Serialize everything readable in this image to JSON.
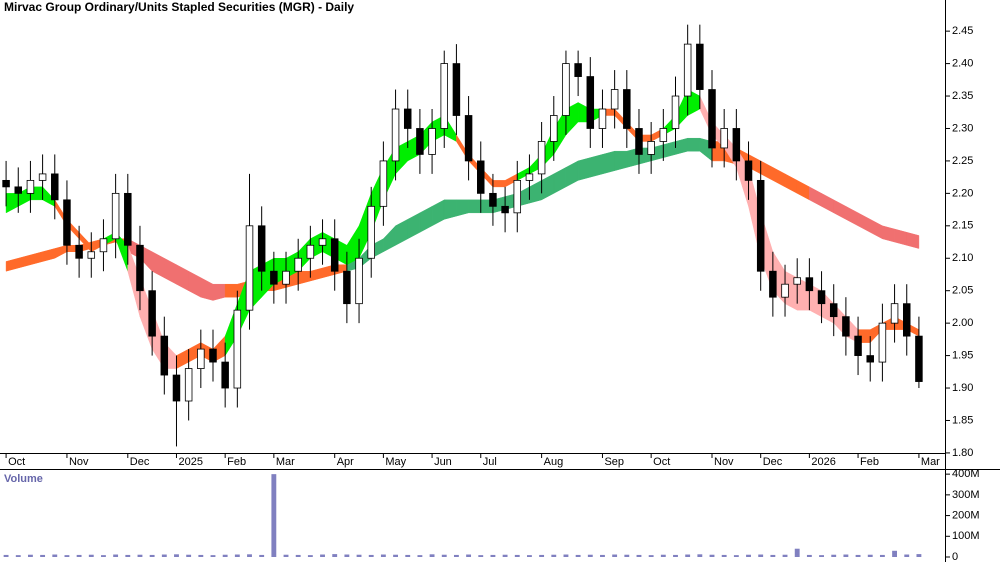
{
  "chart_data": [
    {
      "type": "candlestick",
      "title": "Mirvac Group Ordinary/Units Stapled Securities (MGR) - Daily",
      "categories": [
        "Oct",
        null,
        null,
        null,
        null,
        "Nov",
        null,
        null,
        null,
        null,
        "Dec",
        null,
        null,
        null,
        "2025",
        null,
        null,
        null,
        "Feb",
        null,
        null,
        null,
        "Mar",
        null,
        null,
        null,
        null,
        "Apr",
        null,
        null,
        null,
        "May",
        null,
        null,
        null,
        "Jun",
        null,
        null,
        null,
        "Jul",
        null,
        null,
        null,
        null,
        "Aug",
        null,
        null,
        null,
        null,
        "Sep",
        null,
        null,
        null,
        "Oct",
        null,
        null,
        null,
        null,
        "Nov",
        null,
        null,
        null,
        "Dec",
        null,
        null,
        null,
        "2026",
        null,
        null,
        null,
        "Feb",
        null,
        null,
        null,
        null,
        "Mar"
      ],
      "open": [
        2.22,
        2.21,
        2.2,
        2.22,
        2.23,
        2.19,
        2.12,
        2.1,
        2.11,
        2.13,
        2.2,
        2.12,
        2.05,
        1.98,
        1.92,
        1.88,
        1.93,
        1.96,
        1.94,
        1.9,
        2.02,
        2.15,
        2.08,
        2.06,
        2.08,
        2.1,
        2.12,
        2.13,
        2.08,
        2.03,
        2.1,
        2.18,
        2.25,
        2.33,
        2.3,
        2.26,
        2.3,
        2.4,
        2.32,
        2.25,
        2.2,
        2.18,
        2.17,
        2.22,
        2.23,
        2.28,
        2.32,
        2.4,
        2.38,
        2.3,
        2.33,
        2.36,
        2.3,
        2.26,
        2.28,
        2.3,
        2.35,
        2.43,
        2.36,
        2.27,
        2.3,
        2.25,
        2.22,
        2.08,
        2.04,
        2.06,
        2.07,
        2.05,
        2.03,
        2.01,
        1.98,
        1.95,
        1.94,
        2.0,
        2.03,
        1.98
      ],
      "high": [
        2.25,
        2.24,
        2.25,
        2.26,
        2.26,
        2.22,
        2.15,
        2.14,
        2.16,
        2.23,
        2.23,
        2.15,
        2.08,
        2.01,
        1.95,
        1.96,
        1.99,
        1.99,
        1.97,
        2.05,
        2.23,
        2.18,
        2.11,
        2.11,
        2.13,
        2.15,
        2.16,
        2.16,
        2.11,
        2.13,
        2.21,
        2.28,
        2.36,
        2.36,
        2.33,
        2.33,
        2.42,
        2.43,
        2.35,
        2.28,
        2.23,
        2.21,
        2.25,
        2.26,
        2.31,
        2.35,
        2.42,
        2.42,
        2.41,
        2.36,
        2.39,
        2.39,
        2.33,
        2.31,
        2.33,
        2.38,
        2.46,
        2.46,
        2.39,
        2.33,
        2.33,
        2.28,
        2.25,
        2.11,
        2.09,
        2.1,
        2.1,
        2.08,
        2.06,
        2.04,
        2.01,
        1.98,
        2.03,
        2.06,
        2.06,
        2.01
      ],
      "low": [
        2.18,
        2.17,
        2.17,
        2.19,
        2.16,
        2.09,
        2.07,
        2.07,
        2.08,
        2.1,
        2.09,
        2.02,
        1.95,
        1.89,
        1.81,
        1.85,
        1.9,
        1.91,
        1.87,
        1.87,
        1.99,
        2.05,
        2.03,
        2.03,
        2.05,
        2.07,
        2.09,
        2.05,
        2.0,
        2.0,
        2.07,
        2.15,
        2.22,
        2.27,
        2.23,
        2.23,
        2.27,
        2.29,
        2.22,
        2.17,
        2.15,
        2.14,
        2.14,
        2.19,
        2.2,
        2.25,
        2.29,
        2.35,
        2.27,
        2.27,
        2.3,
        2.27,
        2.23,
        2.23,
        2.25,
        2.27,
        2.32,
        2.33,
        2.24,
        2.24,
        2.22,
        2.19,
        2.05,
        2.01,
        2.01,
        2.03,
        2.02,
        2.0,
        1.98,
        1.95,
        1.92,
        1.91,
        1.91,
        1.97,
        1.95,
        1.9
      ],
      "close": [
        2.21,
        2.2,
        2.22,
        2.23,
        2.19,
        2.12,
        2.1,
        2.11,
        2.13,
        2.2,
        2.12,
        2.05,
        1.98,
        1.92,
        1.88,
        1.93,
        1.96,
        1.94,
        1.9,
        2.02,
        2.15,
        2.08,
        2.06,
        2.08,
        2.1,
        2.12,
        2.13,
        2.08,
        2.03,
        2.1,
        2.18,
        2.25,
        2.33,
        2.3,
        2.26,
        2.3,
        2.4,
        2.32,
        2.25,
        2.2,
        2.18,
        2.17,
        2.22,
        2.23,
        2.28,
        2.32,
        2.4,
        2.38,
        2.3,
        2.33,
        2.36,
        2.3,
        2.26,
        2.28,
        2.3,
        2.35,
        2.43,
        2.36,
        2.27,
        2.3,
        2.25,
        2.22,
        2.08,
        2.04,
        2.06,
        2.07,
        2.05,
        2.03,
        2.01,
        1.98,
        1.95,
        1.94,
        2.0,
        2.03,
        1.98,
        1.91
      ],
      "bands": [
        {
          "upper": [
            2.095,
            2.1,
            2.105,
            2.11,
            2.115,
            2.12,
            2.12,
            2.125,
            2.13,
            2.13,
            2.13,
            2.12,
            2.11,
            2.1,
            2.09,
            2.08,
            2.07,
            2.06,
            2.06,
            2.06,
            2.065,
            2.07,
            2.07,
            2.075,
            2.08,
            2.08,
            2.085,
            2.09,
            2.09,
            2.1,
            2.12,
            2.13,
            2.15,
            2.16,
            2.17,
            2.18,
            2.19,
            2.19,
            2.19,
            2.19,
            2.19,
            2.195,
            2.2,
            2.21,
            2.22,
            2.23,
            2.24,
            2.25,
            2.255,
            2.26,
            2.265,
            2.265,
            2.27,
            2.27,
            2.275,
            2.28,
            2.285,
            2.285,
            2.28,
            2.28,
            2.27,
            2.26,
            2.25,
            2.24,
            2.23,
            2.22,
            2.21,
            2.2,
            2.19,
            2.18,
            2.17,
            2.16,
            2.15,
            2.145,
            2.14,
            2.135
          ],
          "lower": [
            2.08,
            2.085,
            2.09,
            2.095,
            2.1,
            2.11,
            2.11,
            2.115,
            2.12,
            2.125,
            2.11,
            2.1,
            2.08,
            2.07,
            2.06,
            2.05,
            2.04,
            2.035,
            2.04,
            2.04,
            2.045,
            2.05,
            2.05,
            2.055,
            2.06,
            2.065,
            2.07,
            2.075,
            2.08,
            2.085,
            2.1,
            2.11,
            2.12,
            2.13,
            2.14,
            2.15,
            2.16,
            2.165,
            2.17,
            2.17,
            2.17,
            2.175,
            2.18,
            2.185,
            2.19,
            2.2,
            2.21,
            2.22,
            2.225,
            2.23,
            2.235,
            2.24,
            2.245,
            2.25,
            2.255,
            2.26,
            2.265,
            2.265,
            2.25,
            2.25,
            2.245,
            2.24,
            2.23,
            2.22,
            2.21,
            2.2,
            2.19,
            2.18,
            2.17,
            2.16,
            2.15,
            2.14,
            2.13,
            2.125,
            2.12,
            2.115
          ],
          "colors": [
            "#ff6a2a",
            "#ff6a2a",
            "#ff6a2a",
            "#ff6a2a",
            "#ff6a2a",
            "#ff6a2a",
            "#ff6a2a",
            "#ff6a2a",
            "#ff6a2a",
            "#ff6a2a",
            "#f07070",
            "#f07070",
            "#f07070",
            "#f07070",
            "#f07070",
            "#f07070",
            "#f07070",
            "#f07070",
            "#ff6a2a",
            "#ff6a2a",
            "#ff6a2a",
            "#ff6a2a",
            "#ff6a2a",
            "#ff6a2a",
            "#ff6a2a",
            "#ff6a2a",
            "#ff6a2a",
            "#ff6a2a",
            "#3cb371",
            "#3cb371",
            "#3cb371",
            "#3cb371",
            "#3cb371",
            "#3cb371",
            "#3cb371",
            "#3cb371",
            "#3cb371",
            "#3cb371",
            "#3cb371",
            "#3cb371",
            "#3cb371",
            "#3cb371",
            "#3cb371",
            "#3cb371",
            "#3cb371",
            "#3cb371",
            "#3cb371",
            "#3cb371",
            "#3cb371",
            "#3cb371",
            "#3cb371",
            "#3cb371",
            "#3cb371",
            "#3cb371",
            "#3cb371",
            "#3cb371",
            "#3cb371",
            "#3cb371",
            "#ff6a2a",
            "#ff6a2a",
            "#ff6a2a",
            "#ff6a2a",
            "#ff6a2a",
            "#ff6a2a",
            "#ff6a2a",
            "#ff6a2a",
            "#f07070",
            "#f07070",
            "#f07070",
            "#f07070",
            "#f07070",
            "#f07070",
            "#f07070",
            "#f07070",
            "#f07070",
            "#f07070"
          ]
        },
        {
          "upper": [
            2.2,
            2.2,
            2.21,
            2.21,
            2.19,
            2.16,
            2.14,
            2.12,
            2.13,
            2.14,
            2.12,
            2.07,
            2.02,
            1.97,
            1.95,
            1.96,
            1.97,
            1.96,
            1.98,
            2.03,
            2.08,
            2.09,
            2.1,
            2.1,
            2.11,
            2.13,
            2.14,
            2.13,
            2.12,
            2.15,
            2.2,
            2.24,
            2.27,
            2.28,
            2.29,
            2.31,
            2.32,
            2.29,
            2.26,
            2.24,
            2.22,
            2.22,
            2.23,
            2.24,
            2.26,
            2.3,
            2.33,
            2.34,
            2.33,
            2.33,
            2.33,
            2.31,
            2.29,
            2.29,
            2.3,
            2.32,
            2.36,
            2.35,
            2.31,
            2.29,
            2.27,
            2.24,
            2.17,
            2.11,
            2.08,
            2.07,
            2.06,
            2.05,
            2.03,
            2.01,
            1.99,
            1.99,
            2.0,
            2.01,
            2.0,
            1.99
          ],
          "lower": [
            2.17,
            2.18,
            2.19,
            2.19,
            2.18,
            2.15,
            2.13,
            2.11,
            2.12,
            2.13,
            2.08,
            2.01,
            1.96,
            1.93,
            1.93,
            1.94,
            1.95,
            1.94,
            1.95,
            1.98,
            2.02,
            2.04,
            2.06,
            2.07,
            2.08,
            2.1,
            2.11,
            2.1,
            2.09,
            2.1,
            2.14,
            2.19,
            2.23,
            2.25,
            2.26,
            2.28,
            2.29,
            2.28,
            2.25,
            2.23,
            2.21,
            2.21,
            2.22,
            2.23,
            2.24,
            2.26,
            2.29,
            2.31,
            2.31,
            2.32,
            2.32,
            2.3,
            2.28,
            2.28,
            2.29,
            2.3,
            2.32,
            2.33,
            2.29,
            2.27,
            2.24,
            2.18,
            2.1,
            2.05,
            2.03,
            2.02,
            2.02,
            2.01,
            2.0,
            1.98,
            1.97,
            1.97,
            1.99,
            1.99,
            1.99,
            1.98
          ],
          "colors": [
            "#00ee00",
            "#00ee00",
            "#00ee00",
            "#00ee00",
            "#ff6a2a",
            "#ff6a2a",
            "#ff6a2a",
            "#ff6a2a",
            "#00ee00",
            "#00ee00",
            "#ffb0b0",
            "#ffb0b0",
            "#ffb0b0",
            "#ffb0b0",
            "#ff6a2a",
            "#ff6a2a",
            "#ff6a2a",
            "#ff6a2a",
            "#00ee00",
            "#00ee00",
            "#00ee00",
            "#00ee00",
            "#00ee00",
            "#00ee00",
            "#00ee00",
            "#00ee00",
            "#00ee00",
            "#00ee00",
            "#00ee00",
            "#00ee00",
            "#00ee00",
            "#00ee00",
            "#00ee00",
            "#00ee00",
            "#00ee00",
            "#00ee00",
            "#00ee00",
            "#ff6a2a",
            "#ff6a2a",
            "#ff6a2a",
            "#ff6a2a",
            "#ff6a2a",
            "#00ee00",
            "#00ee00",
            "#00ee00",
            "#00ee00",
            "#00ee00",
            "#00ee00",
            "#00ee00",
            "#ff6a2a",
            "#ff6a2a",
            "#ff6a2a",
            "#ff6a2a",
            "#ff6a2a",
            "#00ee00",
            "#00ee00",
            "#00ee00",
            "#ffb0b0",
            "#ffb0b0",
            "#ffb0b0",
            "#ffb0b0",
            "#ffb0b0",
            "#ffb0b0",
            "#ffb0b0",
            "#ffb0b0",
            "#ffb0b0",
            "#ffb0b0",
            "#ffb0b0",
            "#ffb0b0",
            "#ffb0b0",
            "#ff6a2a",
            "#ff6a2a",
            "#ff6a2a",
            "#ff6a2a",
            "#ff6a2a",
            "#ff6a2a"
          ]
        }
      ],
      "ylim": [
        1.786,
        2.498
      ],
      "yticks": [
        {
          "value": 1.8,
          "label": "1.80"
        },
        1.85,
        {
          "value": 1.9,
          "label": "1.90"
        },
        1.95,
        {
          "value": 2.0,
          "label": "2.00"
        },
        2.05,
        {
          "value": 2.1,
          "label": "2.10"
        },
        2.15,
        {
          "value": 2.2,
          "label": "2.20"
        },
        2.25,
        {
          "value": 2.3,
          "label": "2.30"
        },
        2.35,
        {
          "value": 2.4,
          "label": "2.40"
        },
        2.45
      ]
    },
    {
      "type": "bar",
      "title": "Volume",
      "color": "#8080c0",
      "values": [
        10,
        9,
        11,
        10,
        12,
        9,
        10,
        11,
        9,
        12,
        10,
        11,
        10,
        12,
        13,
        11,
        10,
        9,
        11,
        12,
        13,
        10,
        400,
        11,
        10,
        9,
        12,
        14,
        12,
        11,
        10,
        12,
        11,
        10,
        9,
        13,
        11,
        10,
        12,
        9,
        10,
        11,
        10,
        9,
        10,
        11,
        12,
        10,
        11,
        10,
        12,
        11,
        10,
        9,
        11,
        10,
        12,
        13,
        11,
        10,
        9,
        11,
        12,
        10,
        11,
        40,
        10,
        9,
        11,
        12,
        10,
        11,
        10,
        30,
        12,
        14
      ],
      "ylim": [
        0,
        420
      ],
      "yticks": [
        0,
        {
          "value": 100,
          "label": "100M"
        },
        {
          "value": 200,
          "label": "200M"
        },
        {
          "value": 300,
          "label": "300M"
        },
        {
          "value": 400,
          "label": "400M"
        }
      ]
    }
  ]
}
